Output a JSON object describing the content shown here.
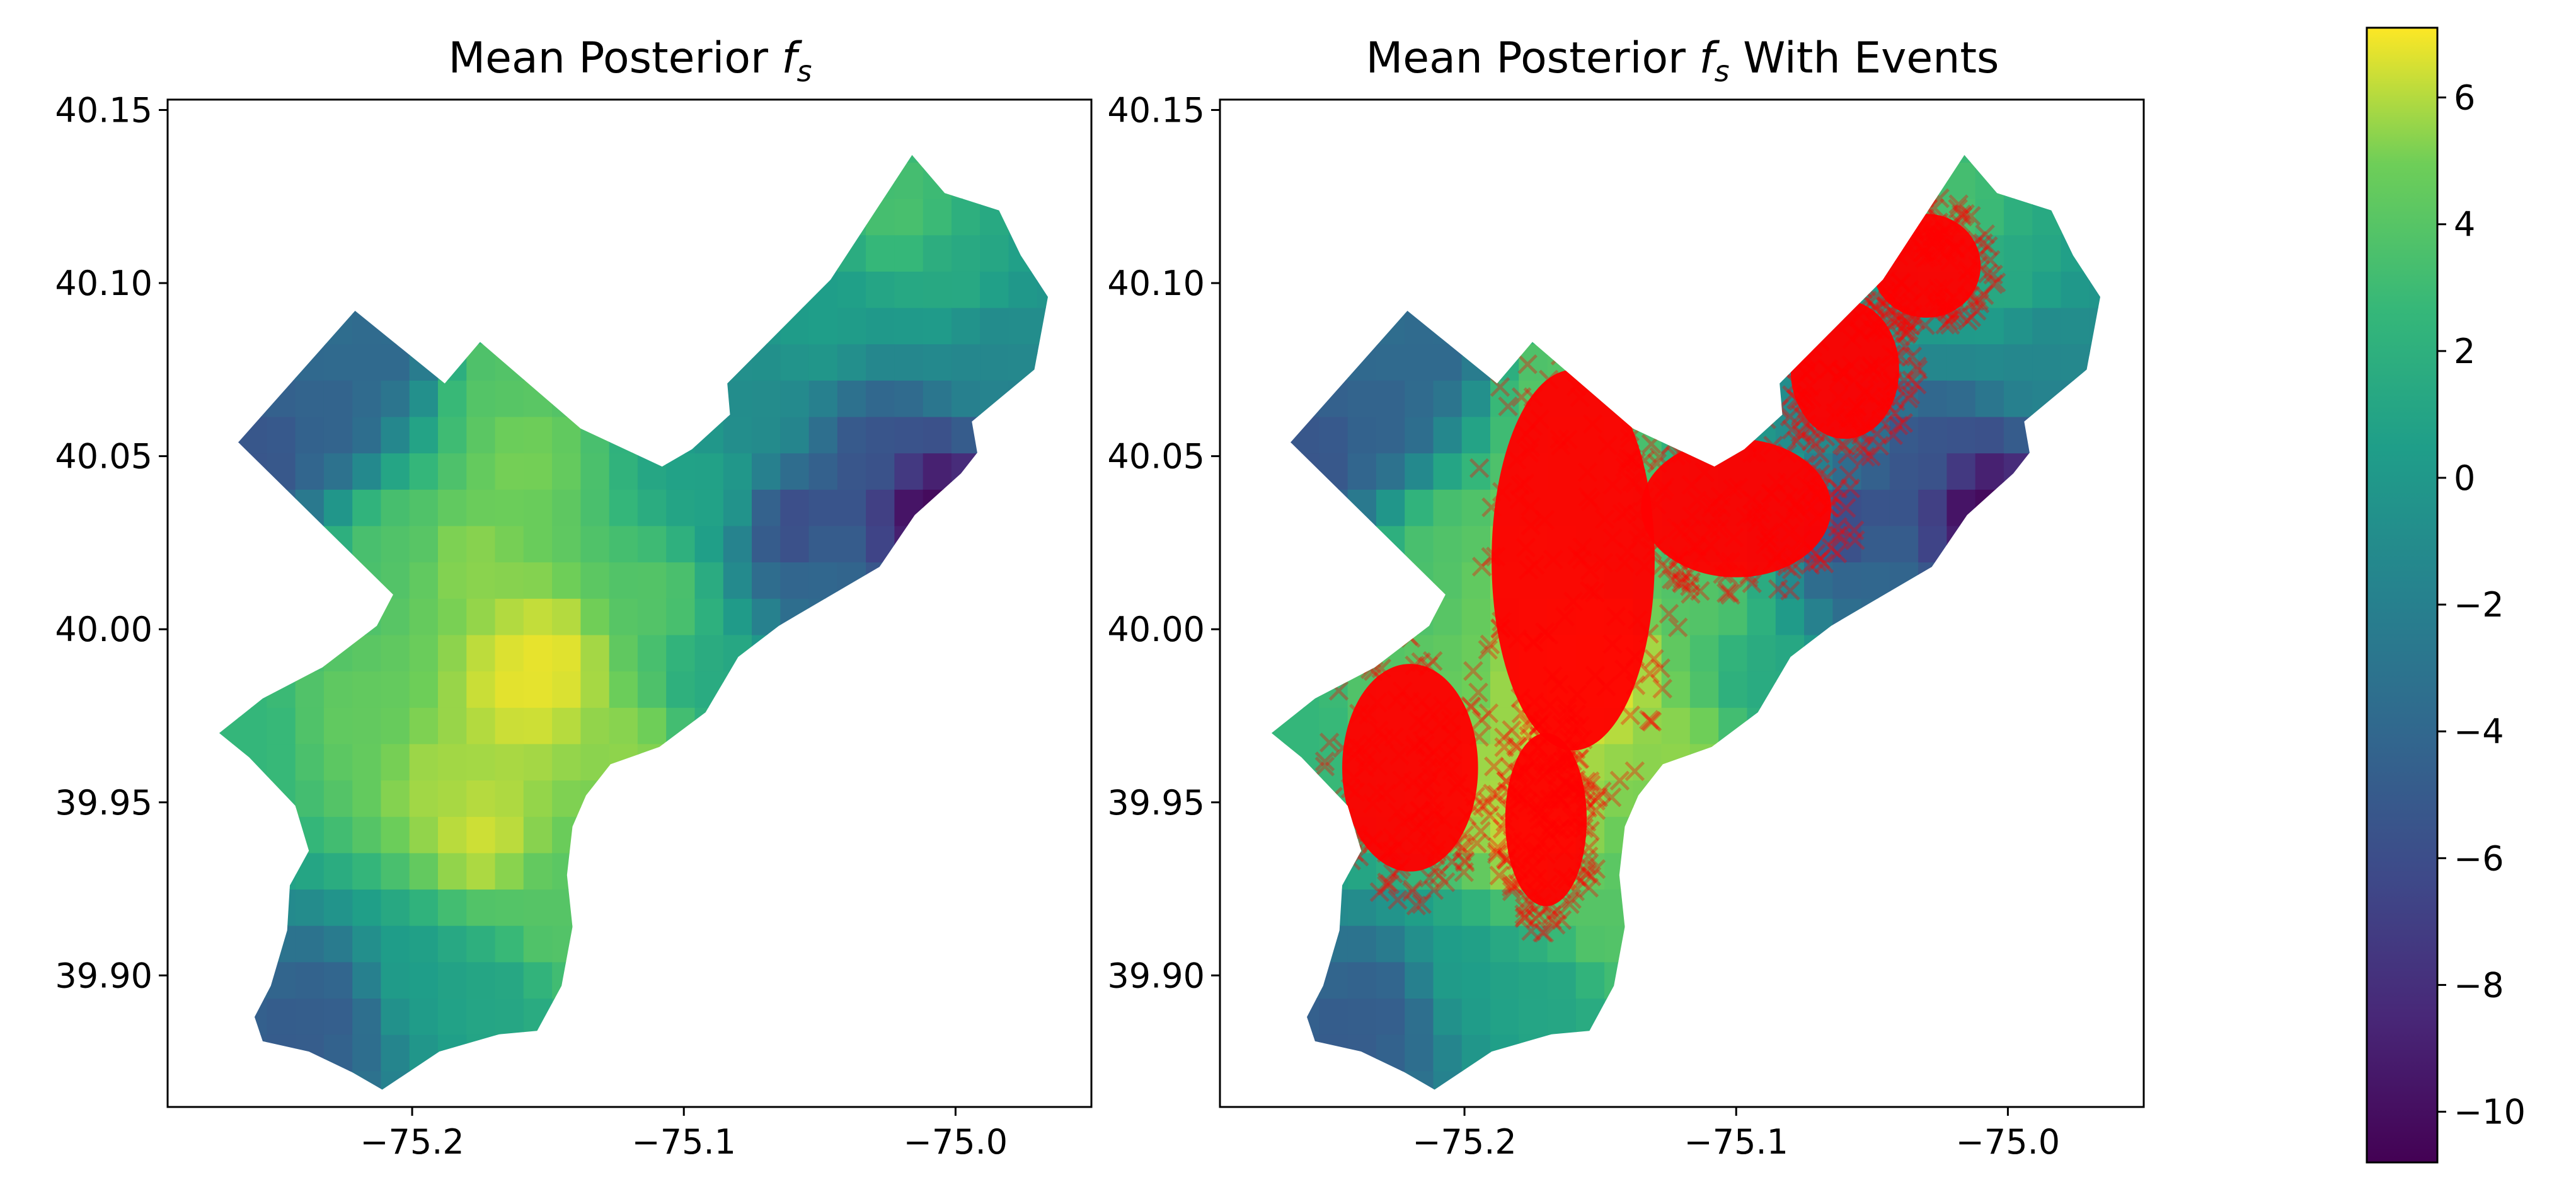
{
  "figure": {
    "panels": [
      {
        "title_main": "Mean Posterior ",
        "title_symbol": "f",
        "title_subscript": "s",
        "title_suffix": "",
        "show_events": false
      },
      {
        "title_main": "Mean Posterior ",
        "title_symbol": "f",
        "title_subscript": "s",
        "title_suffix": " With Events",
        "show_events": true
      }
    ],
    "x_axis": {
      "range": [
        -75.29,
        -74.95
      ],
      "ticks": [
        "−75.2",
        "−75.1",
        "−75.0"
      ],
      "tick_values": [
        -75.2,
        -75.1,
        -75.0
      ]
    },
    "y_axis": {
      "range": [
        39.862,
        40.153
      ],
      "ticks": [
        "39.90",
        "39.95",
        "40.00",
        "40.05",
        "40.10",
        "40.15"
      ],
      "tick_values": [
        39.9,
        39.95,
        40.0,
        40.05,
        40.1,
        40.15
      ]
    },
    "colorbar": {
      "colormap": "viridis",
      "range": [
        -10.8,
        7.1
      ],
      "ticks": [
        "6",
        "4",
        "2",
        "0",
        "−2",
        "−4",
        "−6",
        "−8",
        "−10"
      ],
      "tick_values": [
        6,
        4,
        2,
        0,
        -2,
        -4,
        -6,
        -8,
        -10
      ]
    },
    "event_marker": {
      "symbol": "x",
      "color": "#ff0000"
    }
  },
  "chart_data": {
    "type": "heatmap",
    "field": "mean posterior f_s",
    "x_unit": "longitude",
    "y_unit": "latitude",
    "cell_size_deg": 0.0105,
    "boundary_polygon_lonlat": [
      [
        -75.264,
        40.054
      ],
      [
        -75.221,
        40.092
      ],
      [
        -75.188,
        40.071
      ],
      [
        -75.175,
        40.083
      ],
      [
        -75.138,
        40.058
      ],
      [
        -75.108,
        40.047
      ],
      [
        -75.097,
        40.052
      ],
      [
        -75.083,
        40.062
      ],
      [
        -75.084,
        40.071
      ],
      [
        -75.046,
        40.101
      ],
      [
        -75.016,
        40.137
      ],
      [
        -75.004,
        40.126
      ],
      [
        -74.984,
        40.121
      ],
      [
        -74.976,
        40.108
      ],
      [
        -74.966,
        40.096
      ],
      [
        -74.971,
        40.075
      ],
      [
        -74.994,
        40.06
      ],
      [
        -74.992,
        40.051
      ],
      [
        -74.998,
        40.045
      ],
      [
        -75.015,
        40.033
      ],
      [
        -75.028,
        40.018
      ],
      [
        -75.052,
        40.007
      ],
      [
        -75.065,
        40.001
      ],
      [
        -75.08,
        39.992
      ],
      [
        -75.092,
        39.976
      ],
      [
        -75.109,
        39.966
      ],
      [
        -75.127,
        39.961
      ],
      [
        -75.136,
        39.952
      ],
      [
        -75.141,
        39.943
      ],
      [
        -75.143,
        39.929
      ],
      [
        -75.141,
        39.914
      ],
      [
        -75.145,
        39.897
      ],
      [
        -75.154,
        39.884
      ],
      [
        -75.168,
        39.883
      ],
      [
        -75.19,
        39.878
      ],
      [
        -75.211,
        39.867
      ],
      [
        -75.222,
        39.872
      ],
      [
        -75.238,
        39.878
      ],
      [
        -75.255,
        39.881
      ],
      [
        -75.258,
        39.888
      ],
      [
        -75.252,
        39.897
      ],
      [
        -75.246,
        39.913
      ],
      [
        -75.245,
        39.926
      ],
      [
        -75.238,
        39.936
      ],
      [
        -75.243,
        39.949
      ],
      [
        -75.26,
        39.963
      ],
      [
        -75.271,
        39.97
      ],
      [
        -75.255,
        39.98
      ],
      [
        -75.233,
        39.989
      ],
      [
        -75.213,
        40.001
      ],
      [
        -75.207,
        40.01
      ]
    ],
    "anchors_lon_lat_value": [
      [
        -75.16,
        39.985,
        6.8
      ],
      [
        -75.15,
        39.99,
        6.9
      ],
      [
        -75.175,
        39.94,
        6.5
      ],
      [
        -75.19,
        39.955,
        5.8
      ],
      [
        -75.18,
        40.02,
        5.5
      ],
      [
        -75.16,
        40.05,
        5.2
      ],
      [
        -75.17,
        40.07,
        4.0
      ],
      [
        -75.22,
        39.975,
        4.5
      ],
      [
        -75.26,
        39.97,
        2.5
      ],
      [
        -75.205,
        40.025,
        3.8
      ],
      [
        -75.23,
        40.06,
        -4.5
      ],
      [
        -75.255,
        40.05,
        -5.5
      ],
      [
        -75.21,
        40.08,
        -4.0
      ],
      [
        -75.23,
        39.89,
        -4.8
      ],
      [
        -75.245,
        39.88,
        -5.0
      ],
      [
        -75.2,
        39.9,
        0.5
      ],
      [
        -75.17,
        39.895,
        1.0
      ],
      [
        -75.15,
        39.915,
        4.0
      ],
      [
        -75.12,
        39.965,
        5.5
      ],
      [
        -75.11,
        40.01,
        4.0
      ],
      [
        -75.09,
        40.04,
        1.0
      ],
      [
        -75.07,
        40.06,
        -1.0
      ],
      [
        -75.05,
        40.09,
        0.5
      ],
      [
        -75.02,
        40.12,
        3.5
      ],
      [
        -75.0,
        40.1,
        1.5
      ],
      [
        -74.99,
        40.08,
        -1.5
      ],
      [
        -75.03,
        40.05,
        -5.5
      ],
      [
        -75.01,
        40.035,
        -10.5
      ],
      [
        -75.06,
        40.03,
        -6.5
      ],
      [
        -75.05,
        40.015,
        -4.0
      ],
      [
        -75.09,
        39.985,
        1.5
      ]
    ],
    "events_panel_2_dense_regions": [
      {
        "center": [
          -75.16,
          40.02
        ],
        "extent": [
          0.06,
          0.11
        ]
      },
      {
        "center": [
          -75.22,
          39.96
        ],
        "extent": [
          0.05,
          0.06
        ]
      },
      {
        "center": [
          -75.17,
          39.945
        ],
        "extent": [
          0.03,
          0.05
        ]
      },
      {
        "center": [
          -75.1,
          40.035
        ],
        "extent": [
          0.07,
          0.04
        ]
      },
      {
        "center": [
          -75.06,
          40.075
        ],
        "extent": [
          0.04,
          0.04
        ]
      },
      {
        "center": [
          -75.03,
          40.105
        ],
        "extent": [
          0.04,
          0.03
        ]
      }
    ]
  }
}
